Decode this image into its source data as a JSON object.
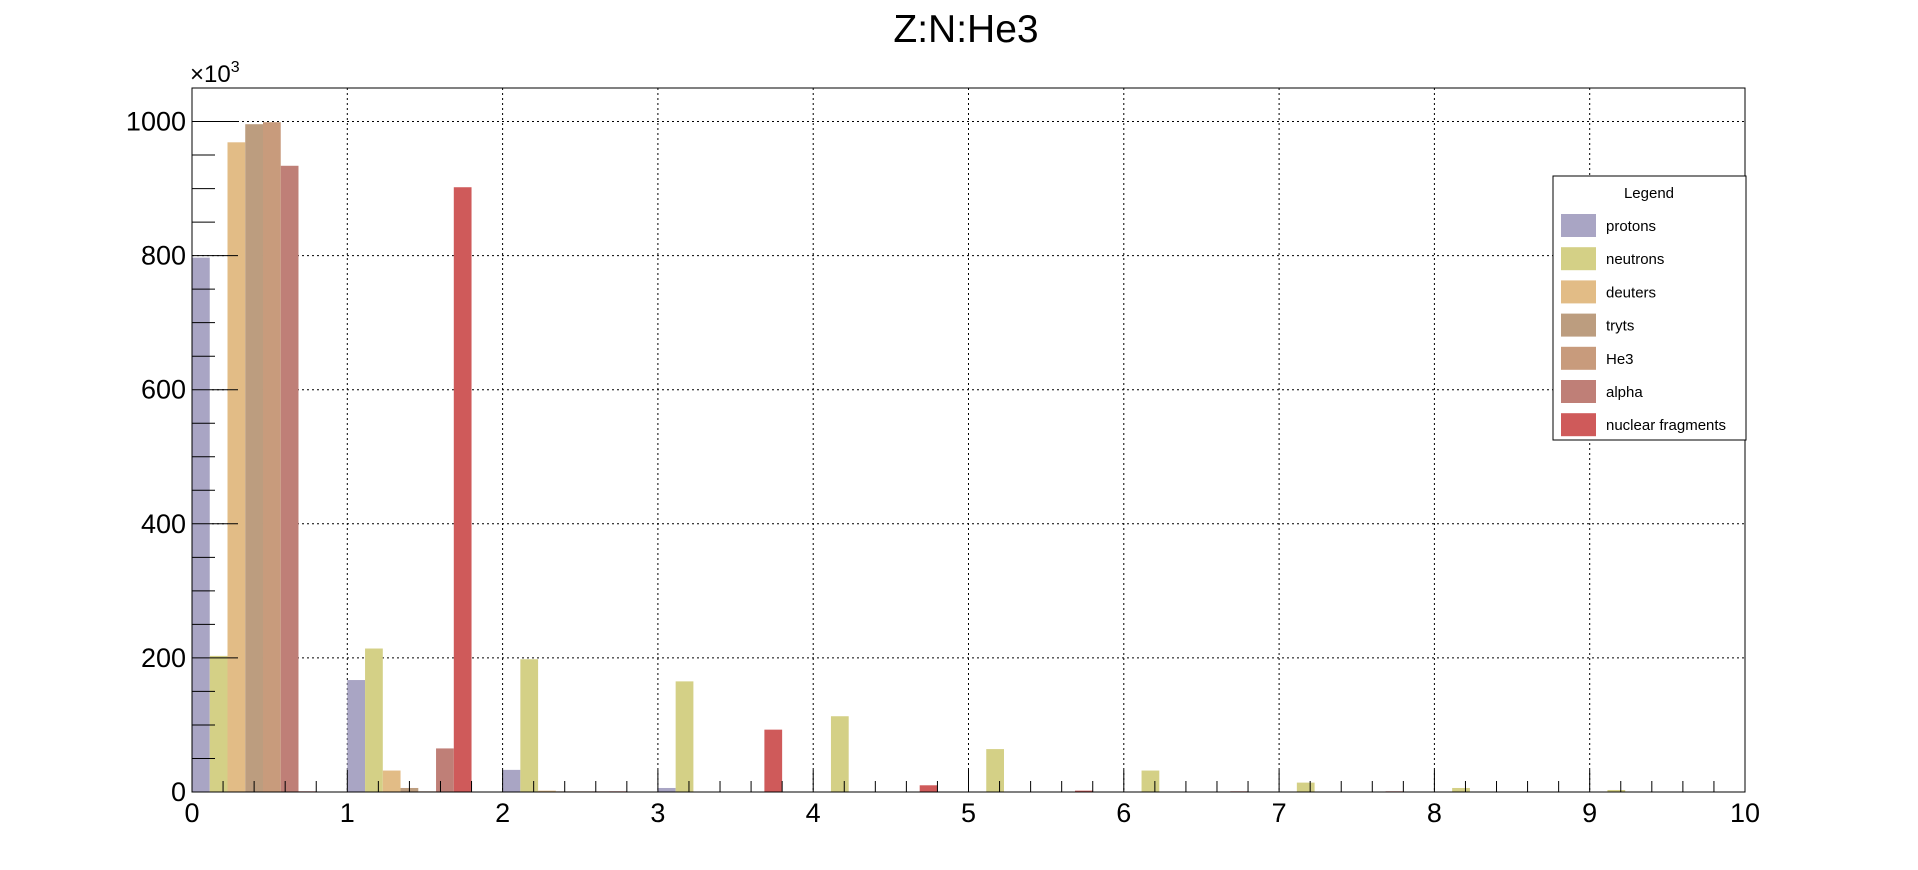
{
  "chart_data": {
    "type": "bar",
    "title": "Z:N:He3",
    "xlabel": "",
    "ylabel": "",
    "y_multiplier_label": "×10",
    "y_multiplier_exponent": "3",
    "xlim": [
      0,
      10
    ],
    "ylim": [
      0,
      1050
    ],
    "x_ticks": [
      "0",
      "1",
      "2",
      "3",
      "4",
      "5",
      "6",
      "7",
      "8",
      "9",
      "10"
    ],
    "y_ticks": [
      "0",
      "200",
      "400",
      "600",
      "800",
      "1000"
    ],
    "grid": true,
    "legend_position": "top-right",
    "legend_title": "Legend",
    "x": [
      0,
      1,
      2,
      3,
      4,
      5,
      6,
      7,
      8,
      9
    ],
    "series": [
      {
        "name": "protons",
        "color": "#a9a5c4",
        "values": [
          797,
          167,
          33,
          6,
          0,
          0,
          0,
          0,
          0,
          0
        ]
      },
      {
        "name": "neutrons",
        "color": "#d4d086",
        "values": [
          203,
          214,
          198,
          165,
          113,
          64,
          32,
          14,
          6,
          3
        ]
      },
      {
        "name": "deuters",
        "color": "#e2bc86",
        "values": [
          969,
          32,
          2,
          0,
          0,
          0,
          0,
          0,
          0,
          0
        ]
      },
      {
        "name": "tryts",
        "color": "#bc9d7f",
        "values": [
          996,
          6,
          1,
          0,
          0,
          0,
          0,
          0,
          0,
          0
        ]
      },
      {
        "name": "He3",
        "color": "#c89b7c",
        "values": [
          999,
          1,
          1,
          0,
          0,
          0,
          0,
          0,
          0,
          0
        ]
      },
      {
        "name": "alpha",
        "color": "#bf7f77",
        "values": [
          934,
          65,
          1,
          0,
          0,
          0,
          0,
          0,
          0,
          0
        ]
      },
      {
        "name": "nuclear fragments",
        "color": "#cf5a5a",
        "values": [
          1,
          902,
          1,
          93,
          10,
          2,
          1,
          1,
          0,
          0
        ]
      }
    ]
  }
}
